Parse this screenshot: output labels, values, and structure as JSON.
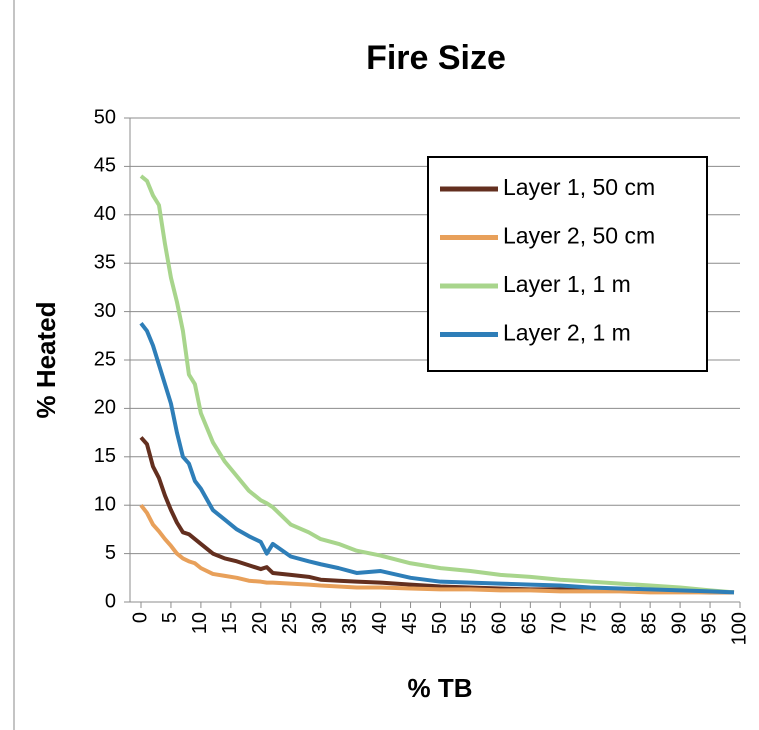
{
  "chart_data": {
    "type": "line",
    "title": "Fire Size",
    "x_label": "% TB",
    "y_label": "% Heated",
    "x": [
      0,
      1,
      2,
      3,
      4,
      5,
      6,
      7,
      8,
      9,
      10,
      12,
      14,
      16,
      18,
      20,
      21,
      22,
      25,
      28,
      30,
      33,
      36,
      40,
      45,
      50,
      55,
      60,
      65,
      70,
      75,
      80,
      85,
      90,
      95,
      99
    ],
    "series": [
      {
        "name": "Layer 1, 50 cm",
        "color": "#632f1f",
        "values": [
          17,
          16.3,
          14,
          12.8,
          11,
          9.5,
          8.2,
          7.2,
          7,
          6.5,
          6,
          5,
          4.5,
          4.2,
          3.8,
          3.4,
          3.6,
          3,
          2.8,
          2.6,
          2.3,
          2.2,
          2.1,
          2,
          1.8,
          1.6,
          1.5,
          1.4,
          1.3,
          1.3,
          1.2,
          1.2,
          1.1,
          1.1,
          1,
          1
        ]
      },
      {
        "name": "Layer 2, 50 cm",
        "color": "#e8a05a",
        "values": [
          10,
          9.2,
          8,
          7.3,
          6.5,
          5.8,
          5,
          4.5,
          4.2,
          4,
          3.5,
          2.9,
          2.7,
          2.5,
          2.2,
          2.1,
          2,
          2,
          1.9,
          1.8,
          1.7,
          1.6,
          1.5,
          1.5,
          1.4,
          1.3,
          1.3,
          1.2,
          1.2,
          1.1,
          1.1,
          1.1,
          1,
          1,
          1,
          1
        ]
      },
      {
        "name": "Layer 1, 1 m",
        "color": "#a8d58c",
        "values": [
          44,
          43.5,
          42,
          41,
          37,
          33.5,
          31,
          28,
          23.5,
          22.5,
          19.5,
          16.5,
          14.5,
          13,
          11.5,
          10.5,
          10.2,
          9.8,
          8,
          7.2,
          6.5,
          6,
          5.3,
          4.8,
          4,
          3.5,
          3.2,
          2.8,
          2.6,
          2.3,
          2.1,
          1.9,
          1.7,
          1.5,
          1.2,
          1
        ]
      },
      {
        "name": "Layer 2, 1 m",
        "color": "#2e7eb8",
        "values": [
          28.8,
          28,
          26.5,
          24.5,
          22.5,
          20.5,
          17.5,
          15,
          14.3,
          12.5,
          11.7,
          9.5,
          8.5,
          7.5,
          6.8,
          6.2,
          5,
          6,
          4.7,
          4.2,
          3.9,
          3.5,
          3,
          3.2,
          2.5,
          2.1,
          2,
          1.9,
          1.8,
          1.7,
          1.5,
          1.4,
          1.3,
          1.2,
          1.1,
          1
        ]
      }
    ],
    "xlim": [
      0,
      100
    ],
    "xticks": [
      0,
      5,
      10,
      15,
      20,
      25,
      30,
      35,
      40,
      45,
      50,
      55,
      60,
      65,
      70,
      75,
      80,
      85,
      90,
      95,
      100
    ],
    "ylim": [
      0,
      50
    ],
    "yticks": [
      0,
      5,
      10,
      15,
      20,
      25,
      30,
      35,
      40,
      45,
      50
    ],
    "grid": true
  }
}
